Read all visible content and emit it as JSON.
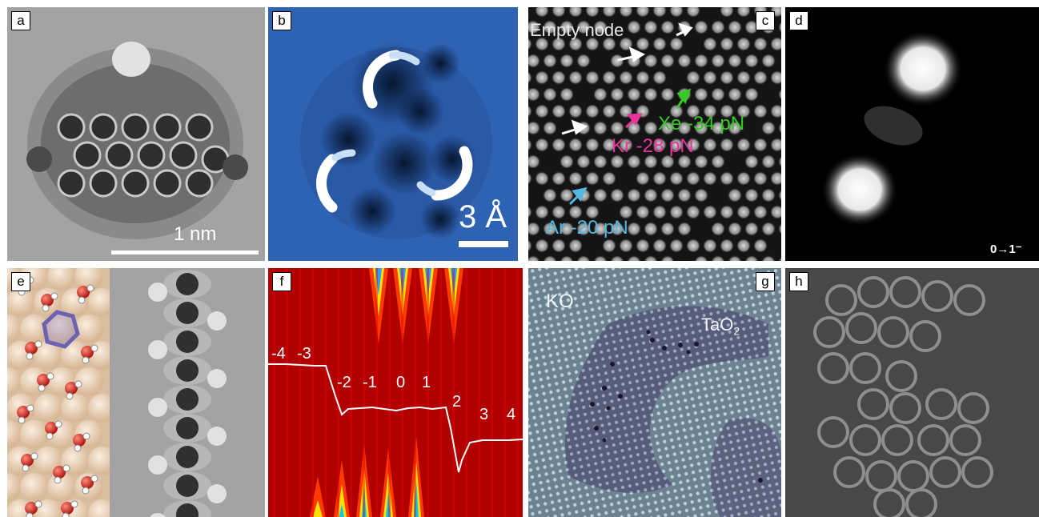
{
  "panels": {
    "a": {
      "label": "a",
      "scale_text": "1 nm"
    },
    "b": {
      "label": "b",
      "scale_text": "3 Å"
    },
    "c": {
      "label": "c",
      "empty_node": "Empty node",
      "xe": "Xe -34 pN",
      "kr": "Kr -28 pN",
      "ar": "Ar -20 pN",
      "colors": {
        "xe": "#33cc22",
        "kr": "#e8359a",
        "ar": "#55b8e0"
      }
    },
    "d": {
      "label": "d",
      "colorbar_text": "0→1⁻"
    },
    "e": {
      "label": "e"
    },
    "f": {
      "label": "f",
      "steps": [
        "-4",
        "-3",
        "-2",
        "-1",
        "0",
        "1",
        "2",
        "3",
        "4"
      ]
    },
    "g": {
      "label": "g",
      "ko": "KO",
      "tao2": "TaO",
      "tao2_sub": "2"
    },
    "h": {
      "label": "h"
    }
  }
}
